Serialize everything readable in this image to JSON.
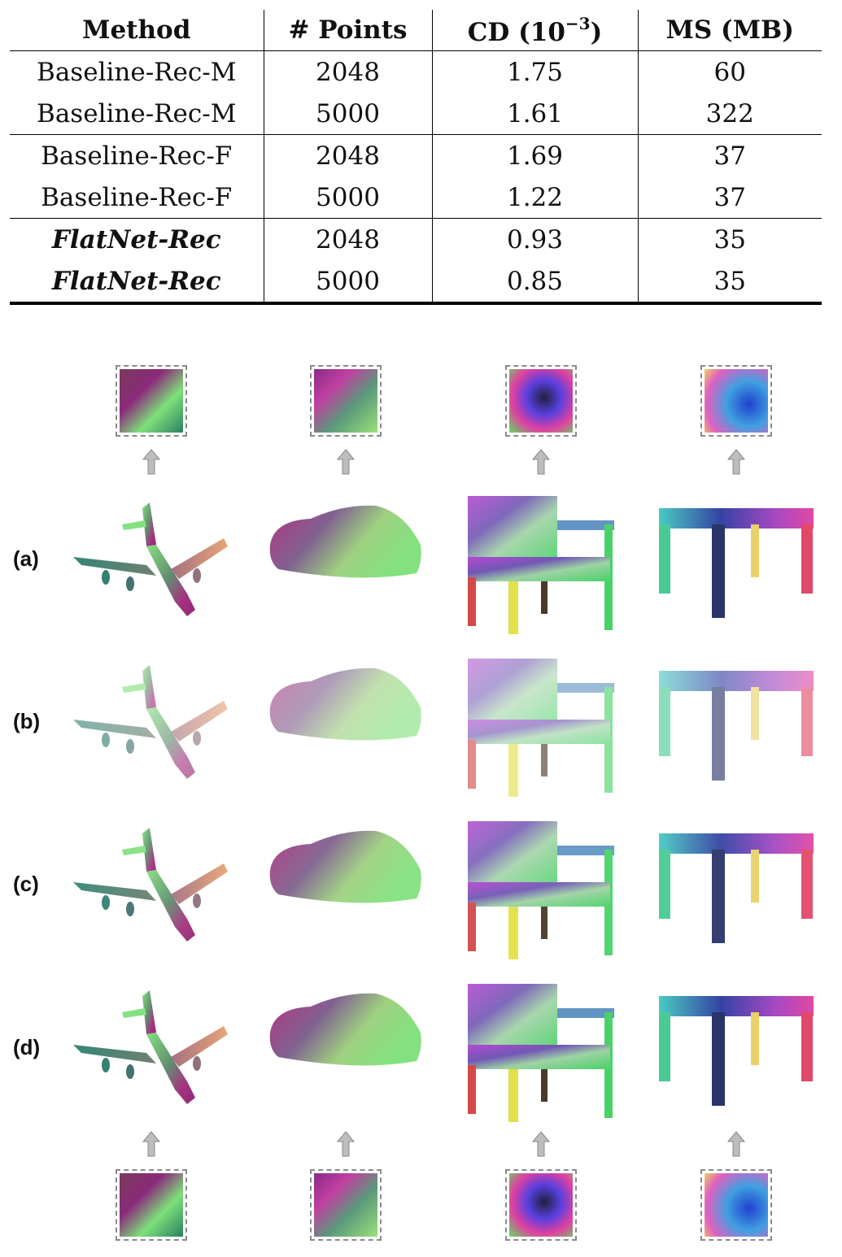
{
  "table": {
    "headers": {
      "method": "Method",
      "points": "# Points",
      "cd_prefix": "CD (10",
      "cd_exp": "−3",
      "cd_suffix": ")",
      "ms": "MS (MB)"
    },
    "rows": [
      {
        "method": "Baseline-Rec-M",
        "points": "2048",
        "cd": "1.75",
        "ms": "60"
      },
      {
        "method": "Baseline-Rec-M",
        "points": "5000",
        "cd": "1.61",
        "ms": "322"
      },
      {
        "method": "Baseline-Rec-F",
        "points": "2048",
        "cd": "1.69",
        "ms": "37"
      },
      {
        "method": "Baseline-Rec-F",
        "points": "5000",
        "cd": "1.22",
        "ms": "37"
      },
      {
        "method": "FlatNet-Rec",
        "points": "2048",
        "cd": "0.93",
        "ms": "35"
      },
      {
        "method": "FlatNet-Rec",
        "points": "5000",
        "cd": "0.85",
        "ms": "35"
      }
    ]
  },
  "figure": {
    "row_labels": [
      "(a)",
      "(b)",
      "(c)",
      "(d)"
    ],
    "objects": [
      "airplane-icon",
      "car-icon",
      "chair-icon",
      "table-icon"
    ],
    "colors": {
      "purple": "#8a2a8a",
      "magenta": "#b02a7a",
      "green": "#7ee07a",
      "teal": "#2a8070",
      "orange": "#e8a070",
      "blue": "#2a3aa0",
      "red": "#d03040",
      "yellow": "#e8e060",
      "cyan": "#40c8c0"
    }
  }
}
